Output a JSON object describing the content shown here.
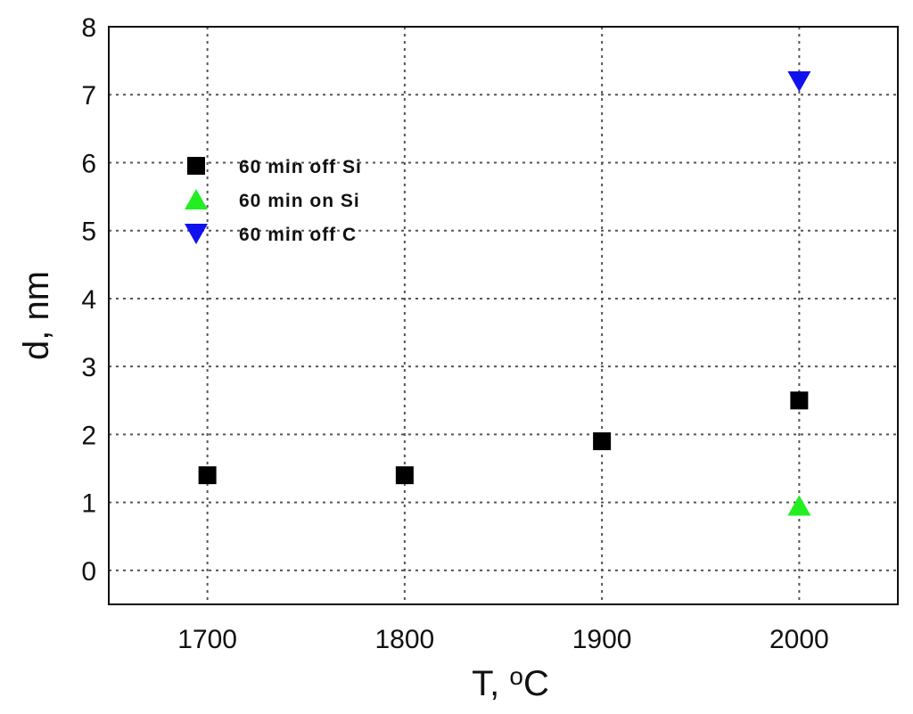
{
  "chart_data": {
    "type": "scatter",
    "title": "",
    "xlabel": "T, ",
    "xlabel_unit": "oC",
    "ylabel": "d, nm",
    "xlim": [
      1650,
      2050
    ],
    "ylim": [
      -0.5,
      8
    ],
    "xticks": [
      "1700",
      "1800",
      "1900",
      "2000"
    ],
    "yticks": [
      "0",
      "1",
      "2",
      "3",
      "4",
      "5",
      "6",
      "7",
      "8"
    ],
    "grid": true,
    "legend_position": "upper-left",
    "series": [
      {
        "name": "60 min off Si",
        "marker": "square",
        "color": "#000000",
        "points": [
          {
            "x": 1700,
            "y": 1.4
          },
          {
            "x": 1800,
            "y": 1.4
          },
          {
            "x": 1900,
            "y": 1.9
          },
          {
            "x": 2000,
            "y": 2.5
          }
        ]
      },
      {
        "name": "60 min on Si",
        "marker": "triangle-up",
        "color": "#22ee22",
        "points": [
          {
            "x": 2000,
            "y": 0.95
          }
        ]
      },
      {
        "name": "60 min off C",
        "marker": "triangle-down",
        "color": "#1111ee",
        "points": [
          {
            "x": 2000,
            "y": 7.2
          }
        ]
      }
    ]
  }
}
